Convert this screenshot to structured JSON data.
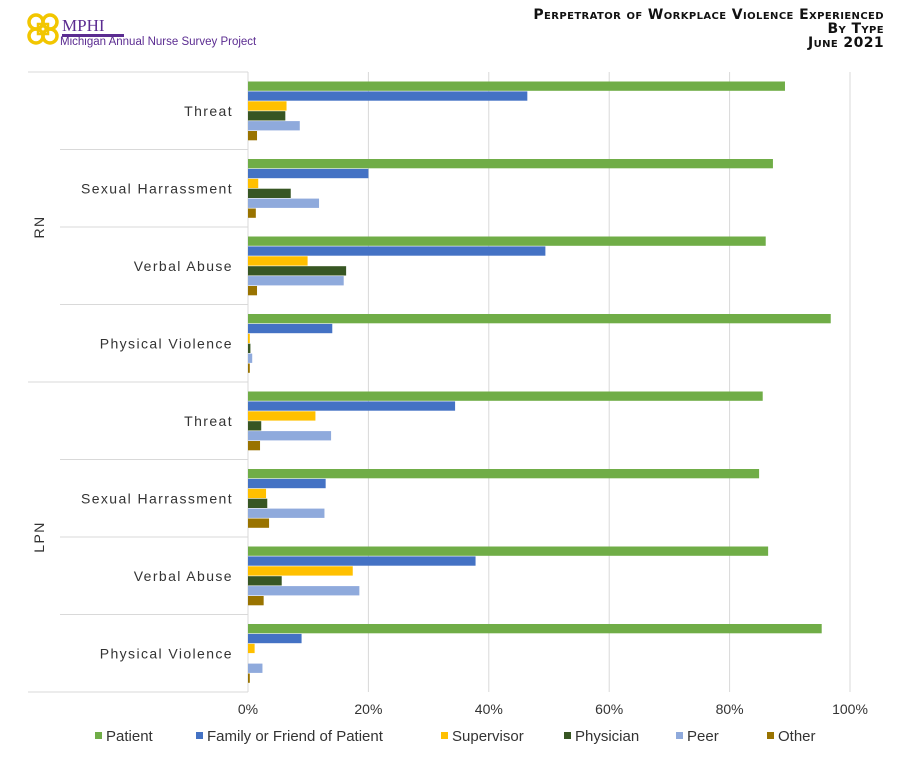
{
  "header": {
    "logo_text": "MPHI",
    "logo_subtitle": "Michigan Annual Nurse Survey Project",
    "title_lines": [
      "Perpetrator of Workplace Violence Experienced",
      "By Type",
      "June 2021"
    ]
  },
  "chart_data": {
    "type": "bar",
    "orientation": "horizontal",
    "title": "Perpetrator of Workplace Violence Experienced By Type June 2021",
    "groups": [
      {
        "name": "RN",
        "categories": [
          "Threat",
          "Sexual Harrassment",
          "Verbal Abuse",
          "Physical Violence"
        ]
      },
      {
        "name": "LPN",
        "categories": [
          "Threat",
          "Sexual Harrassment",
          "Verbal Abuse",
          "Physical Violence"
        ]
      }
    ],
    "xlim": [
      0,
      100
    ],
    "x_ticks": [
      "0%",
      "20%",
      "40%",
      "60%",
      "80%",
      "100%"
    ],
    "grid": true,
    "legend_position": "bottom",
    "series": [
      {
        "name": "Patient",
        "color": "#70ad47",
        "values": [
          89.2,
          87.2,
          86.0,
          96.8,
          85.5,
          84.9,
          86.4,
          95.3
        ]
      },
      {
        "name": "Family or Friend of Patient",
        "color": "#4472c4",
        "values": [
          46.4,
          20.0,
          49.4,
          14.0,
          34.4,
          12.9,
          37.8,
          8.9
        ]
      },
      {
        "name": "Supervisor",
        "color": "#ffc000",
        "values": [
          6.4,
          1.7,
          9.9,
          0.3,
          11.2,
          3.0,
          17.4,
          1.1
        ]
      },
      {
        "name": "Physician",
        "color": "#375623",
        "values": [
          6.2,
          7.1,
          16.3,
          0.4,
          2.2,
          3.2,
          5.6,
          0.0
        ]
      },
      {
        "name": "Peer",
        "color": "#8faadc",
        "values": [
          8.6,
          11.8,
          15.9,
          0.7,
          13.8,
          12.7,
          18.5,
          2.4
        ]
      },
      {
        "name": "Other",
        "color": "#997300",
        "values": [
          1.5,
          1.3,
          1.5,
          0.3,
          2.0,
          3.5,
          2.6,
          0.3
        ]
      }
    ]
  }
}
